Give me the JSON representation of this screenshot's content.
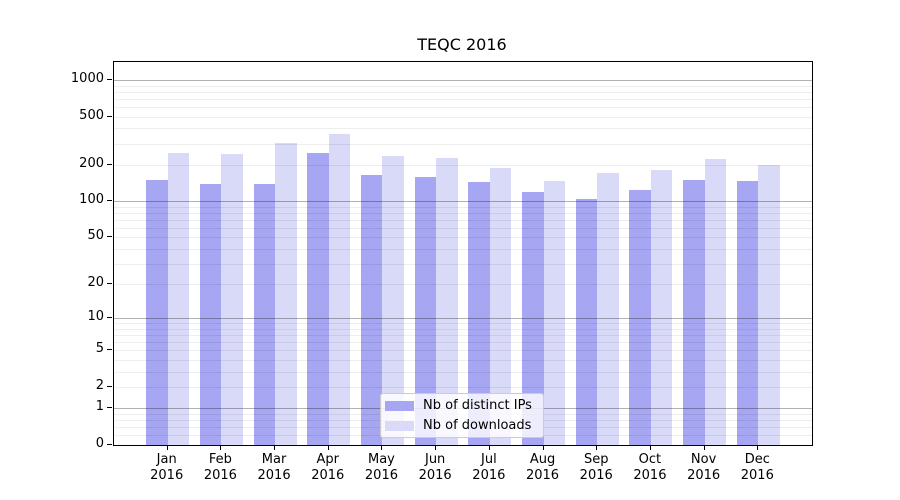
{
  "chart_data": {
    "type": "bar",
    "title": "TEQC 2016",
    "categories": [
      "Jan",
      "Feb",
      "Mar",
      "Apr",
      "May",
      "Jun",
      "Jul",
      "Aug",
      "Sep",
      "Oct",
      "Nov",
      "Dec"
    ],
    "category_year": "2016",
    "series": [
      {
        "name": "Nb of distinct IPs",
        "color": "#a6a6f2",
        "values": [
          150,
          140,
          140,
          250,
          165,
          160,
          145,
          120,
          105,
          125,
          150,
          148
        ]
      },
      {
        "name": "Nb of downloads",
        "color": "#d9d9f8",
        "values": [
          250,
          245,
          305,
          360,
          235,
          230,
          190,
          148,
          170,
          180,
          225,
          200
        ]
      }
    ],
    "y_axis": {
      "ticks": [
        0,
        1,
        2,
        5,
        10,
        20,
        50,
        100,
        200,
        500,
        1000
      ],
      "scale": "symlog",
      "max": 1409,
      "major_gridline_values": [
        1,
        10,
        100,
        1000
      ],
      "minor_gridline_values": [
        0.2,
        0.4,
        0.6,
        0.8,
        2,
        3,
        4,
        5,
        6,
        7,
        8,
        9,
        20,
        30,
        40,
        50,
        60,
        70,
        80,
        90,
        200,
        300,
        400,
        500,
        600,
        700,
        800,
        900
      ]
    },
    "xlabel": "",
    "ylabel": "",
    "grid": true,
    "legend_position": "lower center",
    "background_color": "#ffffff"
  }
}
